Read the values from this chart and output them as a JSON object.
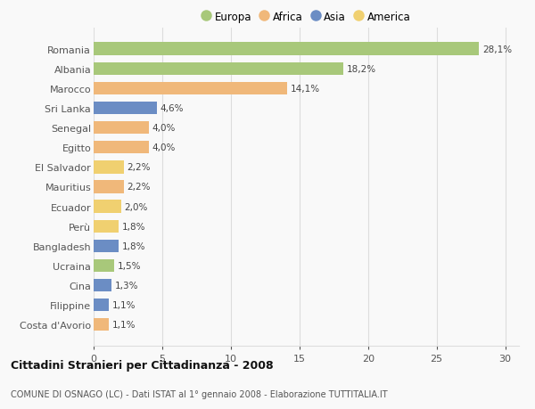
{
  "countries": [
    "Romania",
    "Albania",
    "Marocco",
    "Sri Lanka",
    "Senegal",
    "Egitto",
    "El Salvador",
    "Mauritius",
    "Ecuador",
    "Perù",
    "Bangladesh",
    "Ucraina",
    "Cina",
    "Filippine",
    "Costa d'Avorio"
  ],
  "values": [
    28.1,
    18.2,
    14.1,
    4.6,
    4.0,
    4.0,
    2.2,
    2.2,
    2.0,
    1.8,
    1.8,
    1.5,
    1.3,
    1.1,
    1.1
  ],
  "labels": [
    "28,1%",
    "18,2%",
    "14,1%",
    "4,6%",
    "4,0%",
    "4,0%",
    "2,2%",
    "2,2%",
    "2,0%",
    "1,8%",
    "1,8%",
    "1,5%",
    "1,3%",
    "1,1%",
    "1,1%"
  ],
  "continents": [
    "Europa",
    "Europa",
    "Africa",
    "Asia",
    "Africa",
    "Africa",
    "America",
    "Africa",
    "America",
    "America",
    "Asia",
    "Europa",
    "Asia",
    "Asia",
    "Africa"
  ],
  "continent_colors": {
    "Europa": "#a8c87a",
    "Africa": "#f0b87a",
    "Asia": "#6b8dc4",
    "America": "#f0d070"
  },
  "legend_order": [
    "Europa",
    "Africa",
    "Asia",
    "America"
  ],
  "title": "Cittadini Stranieri per Cittadinanza - 2008",
  "subtitle": "COMUNE DI OSNAGO (LC) - Dati ISTAT al 1° gennaio 2008 - Elaborazione TUTTITALIA.IT",
  "xlim": [
    0,
    31
  ],
  "xticks": [
    0,
    5,
    10,
    15,
    20,
    25,
    30
  ],
  "background_color": "#f9f9f9",
  "grid_color": "#dddddd",
  "bar_height": 0.65
}
